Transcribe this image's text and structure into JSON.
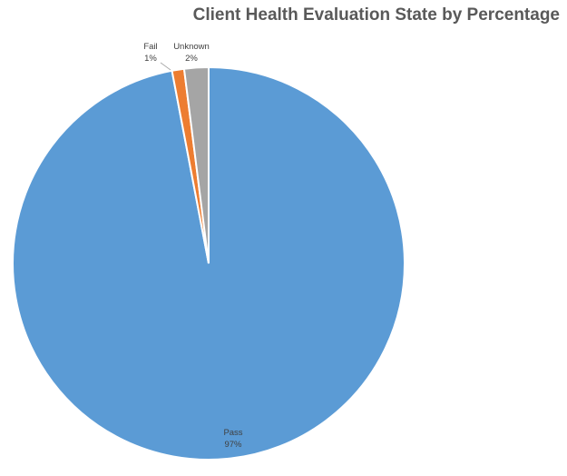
{
  "chart_data": {
    "type": "pie",
    "title": "Client Health Evaluation State by Percentage",
    "categories": [
      "Pass",
      "Fail",
      "Unknown"
    ],
    "values": [
      97,
      1,
      2
    ],
    "colors": [
      "#5B9BD5",
      "#ED7D31",
      "#A5A5A5"
    ],
    "labels": [
      {
        "name": "Pass",
        "pct": "97%"
      },
      {
        "name": "Fail",
        "pct": "1%"
      },
      {
        "name": "Unknown",
        "pct": "2%"
      }
    ],
    "legend": "none"
  }
}
